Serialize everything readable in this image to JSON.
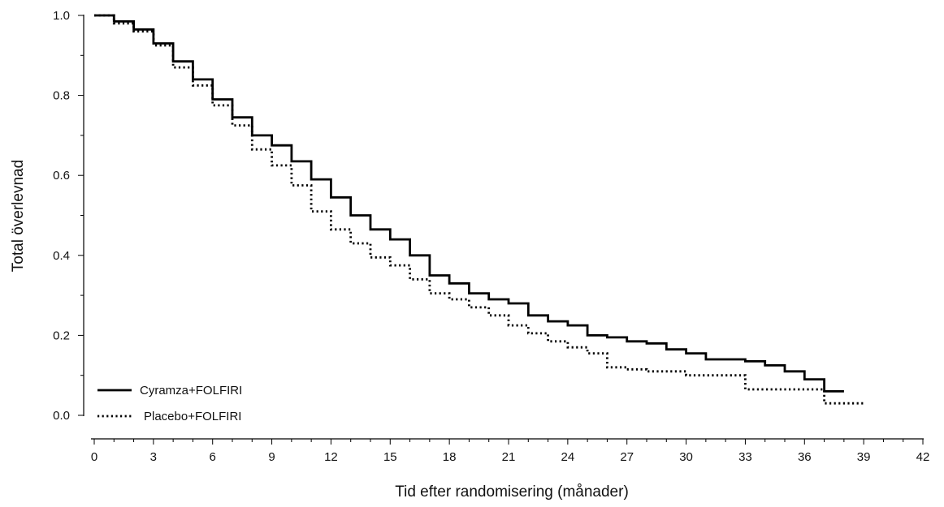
{
  "chart_data": {
    "type": "line",
    "title": "",
    "xlabel": "Tid efter randomisering (månader)",
    "ylabel": "Total överlevnad",
    "xlim": [
      0,
      42
    ],
    "ylim": [
      0,
      1
    ],
    "xticks": [
      "0",
      "3",
      "6",
      "9",
      "12",
      "15",
      "18",
      "21",
      "24",
      "27",
      "30",
      "33",
      "36",
      "39",
      "42"
    ],
    "yticks": [
      "0.0",
      "0.2",
      "0.4",
      "0.6",
      "0.8",
      "1.0"
    ],
    "grid": false,
    "legend_position": "bottom-left",
    "series": [
      {
        "name": "Cyramza+FOLFIRI",
        "style": "solid",
        "color": "#000000",
        "x": [
          0,
          1,
          2,
          3,
          4,
          5,
          6,
          7,
          8,
          9,
          10,
          11,
          12,
          13,
          14,
          15,
          16,
          17,
          18,
          19,
          20,
          21,
          22,
          23,
          24,
          25,
          26,
          27,
          28,
          29,
          30,
          31,
          33,
          34,
          35,
          36,
          37,
          38
        ],
        "values": [
          1.0,
          0.985,
          0.965,
          0.93,
          0.885,
          0.84,
          0.79,
          0.745,
          0.7,
          0.675,
          0.635,
          0.59,
          0.545,
          0.5,
          0.465,
          0.44,
          0.4,
          0.35,
          0.33,
          0.305,
          0.29,
          0.28,
          0.25,
          0.235,
          0.225,
          0.2,
          0.195,
          0.185,
          0.18,
          0.165,
          0.155,
          0.14,
          0.135,
          0.125,
          0.11,
          0.09,
          0.06,
          0.06
        ]
      },
      {
        "name": "Placebo+FOLFIRI",
        "style": "dotted",
        "color": "#000000",
        "x": [
          0,
          1,
          2,
          3,
          4,
          5,
          6,
          7,
          8,
          9,
          10,
          11,
          12,
          13,
          14,
          15,
          16,
          17,
          18,
          19,
          20,
          21,
          22,
          23,
          24,
          25,
          26,
          27,
          28,
          29,
          30,
          31,
          32,
          33,
          34,
          35,
          36,
          37,
          38,
          39
        ],
        "values": [
          1.0,
          0.98,
          0.96,
          0.925,
          0.87,
          0.825,
          0.775,
          0.725,
          0.665,
          0.625,
          0.575,
          0.51,
          0.465,
          0.43,
          0.395,
          0.375,
          0.34,
          0.305,
          0.29,
          0.27,
          0.25,
          0.225,
          0.205,
          0.185,
          0.17,
          0.155,
          0.12,
          0.115,
          0.11,
          0.11,
          0.1,
          0.1,
          0.1,
          0.065,
          0.065,
          0.065,
          0.065,
          0.03,
          0.03,
          0.03
        ]
      }
    ]
  }
}
